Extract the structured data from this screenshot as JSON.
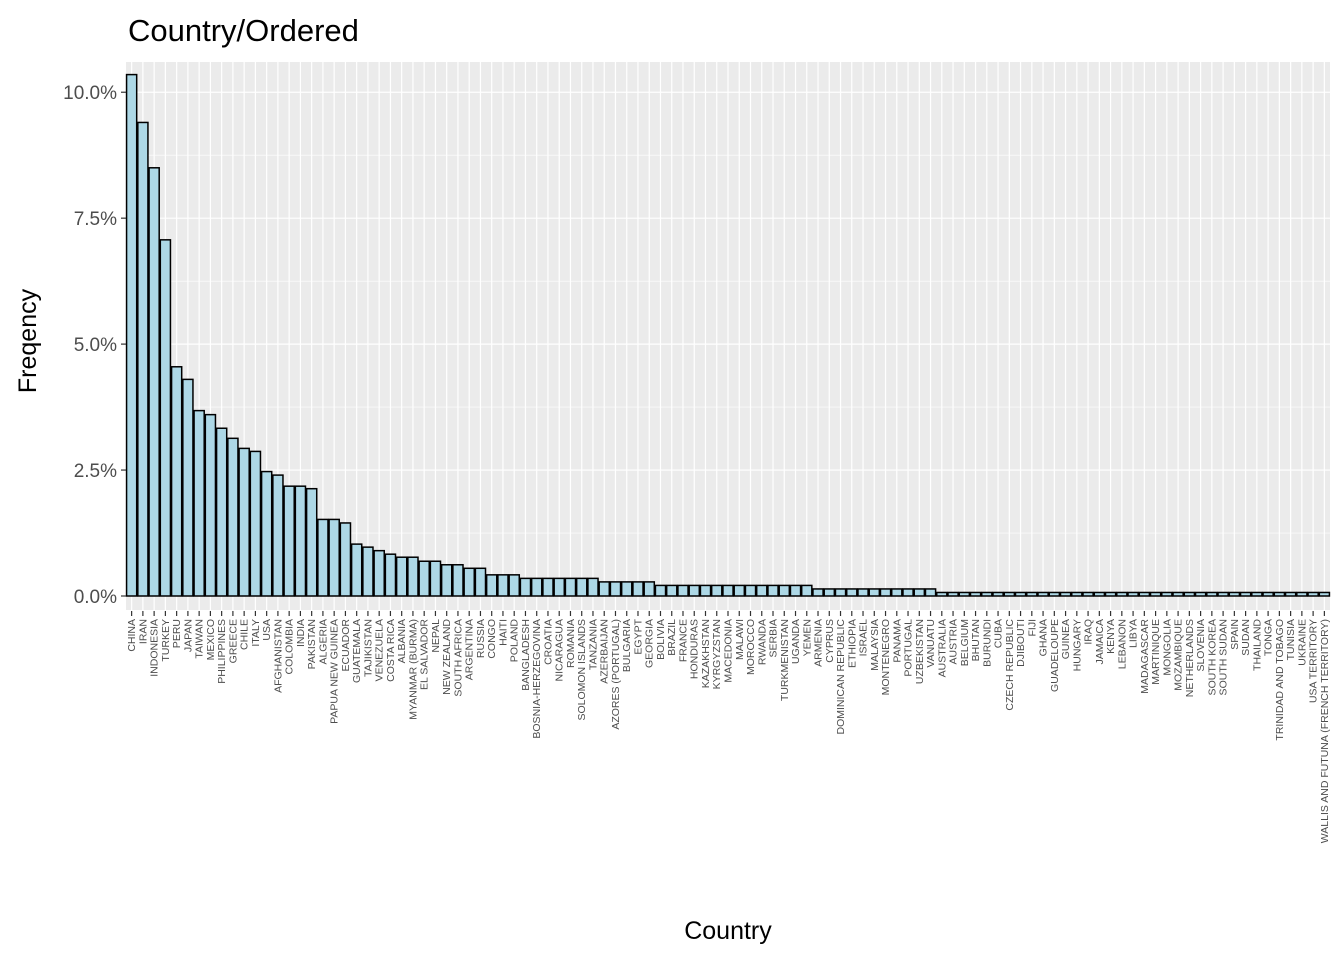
{
  "chart_data": {
    "type": "bar",
    "title": "Country/Ordered",
    "xlabel": "Country",
    "ylabel": "Freqency",
    "ylim": [
      0,
      10.6
    ],
    "y_unit": "%",
    "yticks": [
      0,
      2.5,
      5,
      7.5,
      10
    ],
    "ytick_labels": [
      "0.0%",
      "2.5%",
      "5.0%",
      "7.5%",
      "10.0%"
    ],
    "grid": true,
    "legend": "none",
    "colors": {
      "bar_fill": "#add8e6",
      "bar_stroke": "#000000",
      "panel_bg": "#ebebeb",
      "grid": "#ffffff"
    },
    "categories": [
      "CHINA",
      "IRAN",
      "INDONESIA",
      "TURKEY",
      "PERU",
      "JAPAN",
      "TAIWAN",
      "MEXICO",
      "PHILIPPINES",
      "GREECE",
      "CHILE",
      "ITALY",
      "USA",
      "AFGHANISTAN",
      "COLOMBIA",
      "INDIA",
      "PAKISTAN",
      "ALGERIA",
      "PAPUA NEW GUINEA",
      "ECUADOR",
      "GUATEMALA",
      "TAJIKISTAN",
      "VENEZUELA",
      "COSTA RICA",
      "ALBANIA",
      "MYANMAR (BURMA)",
      "EL SALVADOR",
      "NEPAL",
      "NEW ZEALAND",
      "SOUTH AFRICA",
      "ARGENTINA",
      "RUSSIA",
      "CONGO",
      "HAITI",
      "POLAND",
      "BANGLADESH",
      "BOSNIA-HERZEGOVINA",
      "CROATIA",
      "NICARAGUA",
      "ROMANIA",
      "SOLOMON ISLANDS",
      "TANZANIA",
      "AZERBAIJAN",
      "AZORES (PORTUGAL)",
      "BULGARIA",
      "EGYPT",
      "GEORGIA",
      "BOLIVIA",
      "BRAZIL",
      "FRANCE",
      "HONDURAS",
      "KAZAKHSTAN",
      "KYRGYZSTAN",
      "MACEDONIA",
      "MALAWI",
      "MOROCCO",
      "RWANDA",
      "SERBIA",
      "TURKMENISTAN",
      "UGANDA",
      "YEMEN",
      "ARMENIA",
      "CYPRUS",
      "DOMINICAN REPUBLIC",
      "ETHIOPIA",
      "ISRAEL",
      "MALAYSIA",
      "MONTENEGRO",
      "PANAMA",
      "PORTUGAL",
      "UZBEKISTAN",
      "VANUATU",
      "AUSTRALIA",
      "AUSTRIA",
      "BELGIUM",
      "BHUTAN",
      "BURUNDI",
      "CUBA",
      "CZECH REPUBLIC",
      "DJIBOUTI",
      "FIJI",
      "GHANA",
      "GUADELOUPE",
      "GUINEA",
      "HUNGARY",
      "IRAQ",
      "JAMAICA",
      "KENYA",
      "LEBANON",
      "LIBYA",
      "MADAGASCAR",
      "MARTINIQUE",
      "MONGOLIA",
      "MOZAMBIQUE",
      "NETHERLANDS",
      "SLOVENIA",
      "SOUTH KOREA",
      "SOUTH SUDAN",
      "SPAIN",
      "SUDAN",
      "THAILAND",
      "TONGA",
      "TRINIDAD AND TOBAGO",
      "TUNISIA",
      "UKRAINE",
      "USA TERRITORY",
      "WALLIS AND FUTUNA (FRENCH TERRITORY)"
    ],
    "values": [
      10.35,
      9.4,
      8.5,
      7.07,
      4.55,
      4.3,
      3.68,
      3.6,
      3.33,
      3.13,
      2.93,
      2.87,
      2.47,
      2.4,
      2.18,
      2.18,
      2.13,
      1.52,
      1.52,
      1.45,
      1.03,
      0.97,
      0.9,
      0.83,
      0.77,
      0.77,
      0.69,
      0.69,
      0.62,
      0.62,
      0.55,
      0.55,
      0.42,
      0.42,
      0.42,
      0.35,
      0.35,
      0.35,
      0.35,
      0.35,
      0.35,
      0.35,
      0.28,
      0.28,
      0.28,
      0.28,
      0.28,
      0.21,
      0.21,
      0.21,
      0.21,
      0.21,
      0.21,
      0.21,
      0.21,
      0.21,
      0.21,
      0.21,
      0.21,
      0.21,
      0.21,
      0.14,
      0.14,
      0.14,
      0.14,
      0.14,
      0.14,
      0.14,
      0.14,
      0.14,
      0.14,
      0.14,
      0.07,
      0.07,
      0.07,
      0.07,
      0.07,
      0.07,
      0.07,
      0.07,
      0.07,
      0.07,
      0.07,
      0.07,
      0.07,
      0.07,
      0.07,
      0.07,
      0.07,
      0.07,
      0.07,
      0.07,
      0.07,
      0.07,
      0.07,
      0.07,
      0.07,
      0.07,
      0.07,
      0.07,
      0.07,
      0.07,
      0.07,
      0.07,
      0.07,
      0.07,
      0.07
    ]
  }
}
